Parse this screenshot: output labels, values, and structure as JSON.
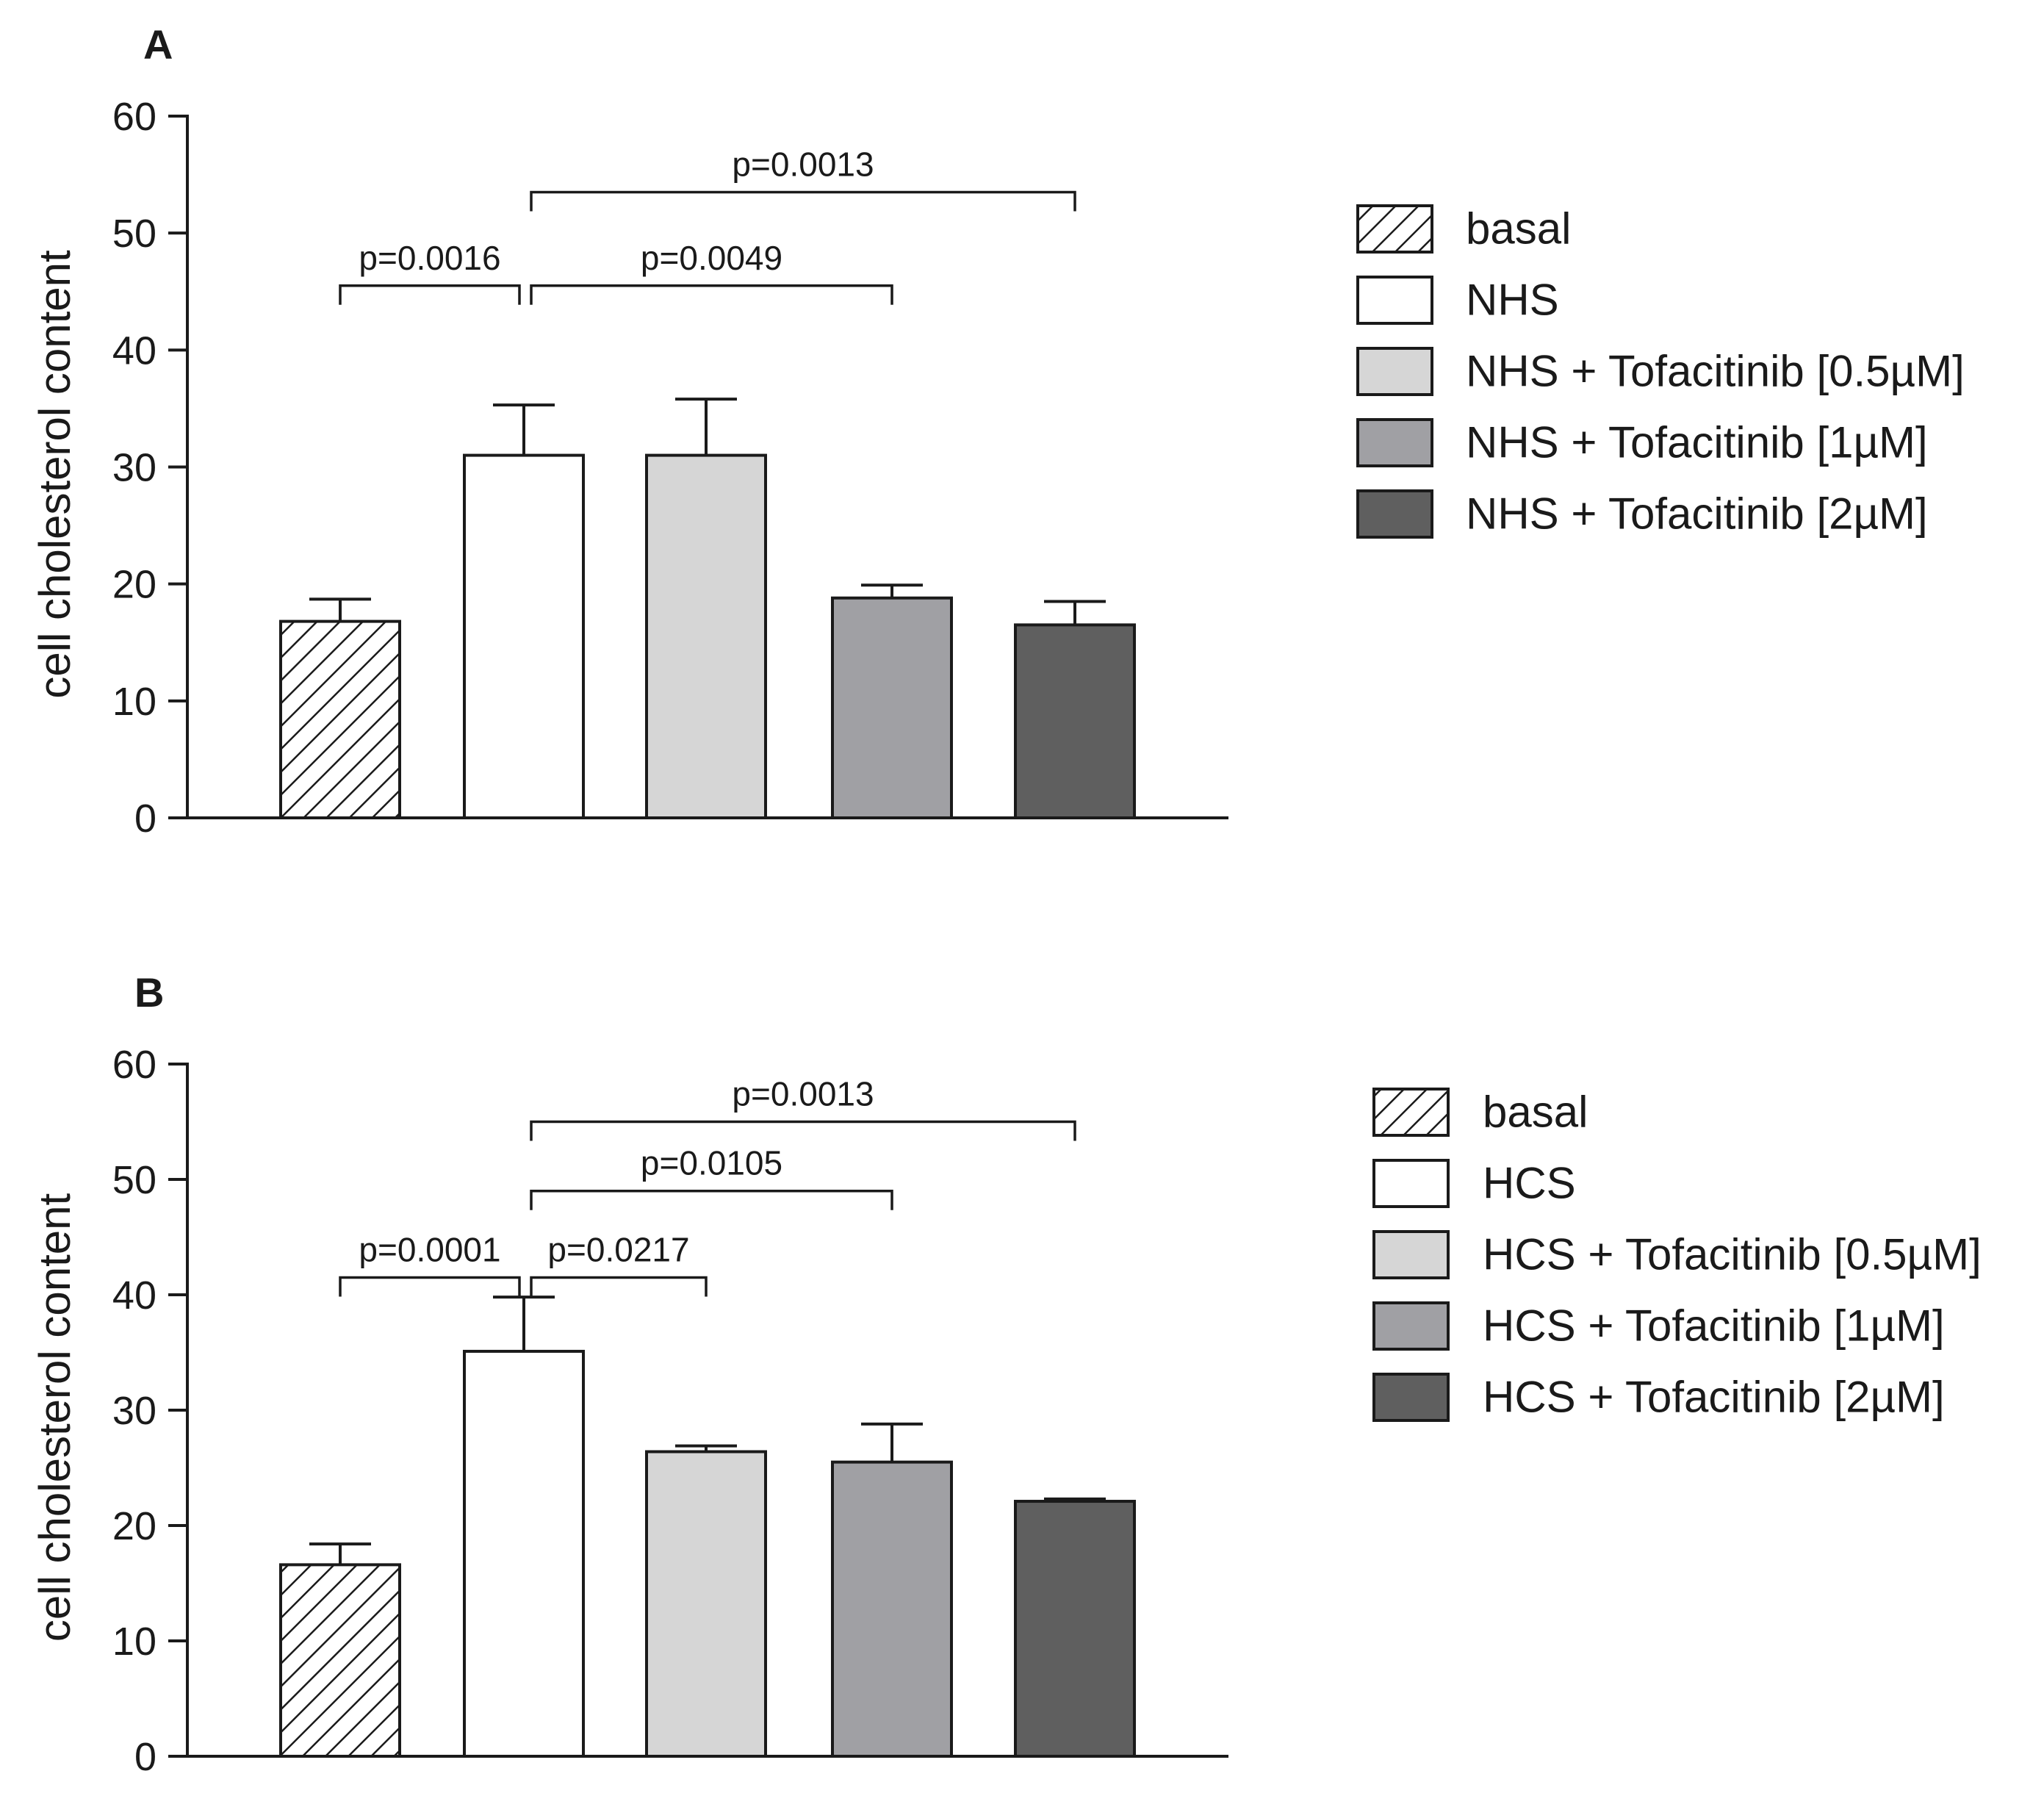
{
  "chart_data": [
    {
      "panel": "A",
      "type": "bar",
      "ylabel": "cell cholesterol content",
      "ylim": [
        0,
        60
      ],
      "yticks": [
        0,
        10,
        20,
        30,
        40,
        50,
        60
      ],
      "categories": [
        "basal",
        "NHS",
        "NHS + Tofacitinib [0.5µM]",
        "NHS + Tofacitinib [1µM]",
        "NHS + Tofacitinib [2µM]"
      ],
      "values": [
        16.8,
        31.0,
        31.0,
        18.8,
        16.5
      ],
      "errors": [
        1.9,
        4.3,
        4.8,
        1.1,
        2.0
      ],
      "fills": [
        "hatch",
        "#ffffff",
        "#d6d6d6",
        "#a0a0a4",
        "#5f5f5f"
      ],
      "comparisons": [
        {
          "label": "p=0.0016",
          "from": 0,
          "to": 1,
          "level": 45.5
        },
        {
          "label": "p=0.0049",
          "from": 1,
          "to": 3,
          "level": 45.5
        },
        {
          "label": "p=0.0013",
          "from": 1,
          "to": 4,
          "level": 53.5
        }
      ],
      "legend": [
        "basal",
        "NHS",
        "NHS + Tofacitinib [0.5µM]",
        "NHS + Tofacitinib [1µM]",
        "NHS + Tofacitinib [2µM]"
      ]
    },
    {
      "panel": "B",
      "type": "bar",
      "ylabel": "cell cholesterol content",
      "ylim": [
        0,
        60
      ],
      "yticks": [
        0,
        10,
        20,
        30,
        40,
        50,
        60
      ],
      "categories": [
        "basal",
        "HCS",
        "HCS + Tofacitinib [0.5µM]",
        "HCS + Tofacitinib [1µM]",
        "HCS + Tofacitinib [2µM]"
      ],
      "values": [
        16.6,
        35.1,
        26.4,
        25.5,
        22.1
      ],
      "errors": [
        1.8,
        4.7,
        0.5,
        3.3,
        0.2
      ],
      "fills": [
        "hatch",
        "#ffffff",
        "#d6d6d6",
        "#a0a0a4",
        "#5f5f5f"
      ],
      "comparisons": [
        {
          "label": "p=0.0001",
          "from": 0,
          "to": 1,
          "level": 41.5
        },
        {
          "label": "p=0.0217",
          "from": 1,
          "to": 2,
          "level": 41.5
        },
        {
          "label": "p=0.0105",
          "from": 1,
          "to": 3,
          "level": 49.0
        },
        {
          "label": "p=0.0013",
          "from": 1,
          "to": 4,
          "level": 55.0
        }
      ],
      "legend": [
        "basal",
        "HCS",
        "HCS + Tofacitinib [0.5µM]",
        "HCS + Tofacitinib [1µM]",
        "HCS + Tofacitinib [2µM]"
      ]
    }
  ]
}
